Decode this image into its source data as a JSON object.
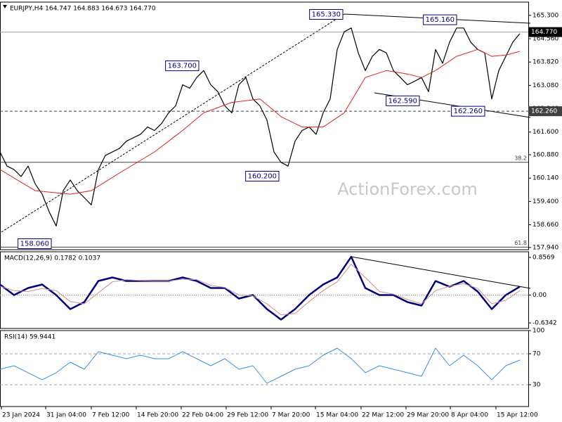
{
  "watermark": "ActionForex.com",
  "chart_data": [
    {
      "type": "line",
      "title": "EURJPY,H4  164.747 164.883 164.673 164.770",
      "xlim": [
        0,
        75.2
      ],
      "ylim": [
        157.87,
        165.72
      ],
      "yticks": [
        {
          "value": 165.3,
          "label": "165.300"
        },
        {
          "value": 164.56,
          "label": "164.560"
        },
        {
          "value": 163.82,
          "label": "163.820"
        },
        {
          "value": 163.08,
          "label": "163.080"
        },
        {
          "value": 162.34,
          "label": "162.340"
        },
        {
          "value": 161.6,
          "label": "161.600"
        },
        {
          "value": 160.88,
          "label": "160.880"
        },
        {
          "value": 160.14,
          "label": "160.140"
        },
        {
          "value": 159.4,
          "label": "159.400"
        },
        {
          "value": 158.66,
          "label": "158.660"
        },
        {
          "value": 157.94,
          "label": "157.940"
        }
      ],
      "levels": [
        {
          "value": 164.77,
          "label": "164.770",
          "style": "solid",
          "color": "#a0a0a0",
          "tag": true,
          "tag_color": "#000000"
        },
        {
          "value": 162.26,
          "label": "162.260",
          "style": "dashed",
          "color": "#404040",
          "tag": true,
          "tag_color": "#404040"
        },
        {
          "value": 160.64,
          "label": "38.2",
          "style": "solid",
          "color": "#404040",
          "tag": false
        },
        {
          "value": 157.95,
          "label": "61.8",
          "style": "solid",
          "color": "#404040",
          "tag": false
        }
      ],
      "series": [
        {
          "name": "EURJPY",
          "color": "#000000",
          "width": 1.2,
          "values": [
            160.97,
            160.52,
            160.41,
            160.19,
            160.52,
            159.96,
            159.63,
            159.07,
            158.62,
            159.74,
            160.08,
            159.74,
            159.52,
            159.29,
            160.41,
            160.86,
            160.97,
            161.08,
            161.31,
            161.42,
            161.53,
            161.76,
            161.65,
            161.87,
            162.21,
            162.43,
            163.1,
            162.99,
            163.33,
            163.55,
            163.1,
            162.88,
            162.43,
            162.21,
            163.1,
            163.33,
            162.65,
            162.43,
            161.98,
            160.97,
            160.64,
            160.52,
            161.31,
            161.65,
            161.76,
            161.53,
            162.21,
            162.65,
            164.22,
            164.78,
            164.9,
            164.11,
            163.55,
            164.0,
            164.22,
            164.11,
            163.55,
            163.33,
            163.1,
            163.21,
            163.33,
            162.88,
            164.22,
            163.78,
            164.45,
            164.9,
            164.9,
            164.45,
            164.22,
            164.11,
            162.65,
            163.55,
            164.0,
            164.45,
            164.72
          ]
        },
        {
          "name": "MA",
          "color": "#e02020",
          "width": 1,
          "x": [
            0,
            5,
            10,
            13,
            17,
            22,
            26,
            29,
            33,
            37,
            40,
            43,
            46,
            49,
            52,
            55,
            58,
            60,
            62,
            65,
            68,
            70,
            72,
            74
          ],
          "values": [
            160.41,
            159.74,
            159.63,
            159.74,
            160.3,
            160.97,
            161.65,
            162.21,
            162.54,
            162.65,
            162.09,
            161.76,
            161.76,
            162.21,
            163.33,
            163.55,
            163.44,
            163.33,
            163.55,
            164.0,
            164.22,
            164.0,
            164.04,
            164.16
          ]
        }
      ],
      "annotations": [
        {
          "x": 48.8,
          "value": 165.33,
          "label": "165.330"
        },
        {
          "x": 65,
          "value": 165.16,
          "label": "165.160"
        },
        {
          "x": 28.3,
          "value": 163.7,
          "label": "163.700"
        },
        {
          "x": 59.7,
          "value": 162.59,
          "label": "162.590"
        },
        {
          "x": 69,
          "value": 162.26,
          "label": "162.260"
        },
        {
          "x": 39.7,
          "value": 160.2,
          "label": "160.200"
        },
        {
          "x": 7.3,
          "value": 158.06,
          "label": "158.060"
        }
      ]
    },
    {
      "type": "line",
      "title": "MACD(12,26,9) 0.1782 0.1037",
      "xlim": [
        0,
        75.2
      ],
      "ylim": [
        -0.761,
        0.984
      ],
      "yticks": [
        0.8569,
        {
          "value": 0,
          "label": "0.00"
        },
        -0.6342
      ],
      "levels": [
        {
          "value": 0,
          "style": "dotted",
          "color": "#808080"
        }
      ],
      "series": [
        {
          "name": "MACD",
          "color": "#000080",
          "width": 2.5,
          "x": [
            0,
            2,
            4,
            6,
            8,
            10,
            12,
            14,
            16,
            18,
            20,
            22,
            24,
            26,
            28,
            30,
            32,
            34,
            36,
            38,
            40,
            42,
            44,
            46,
            48,
            50,
            52,
            54,
            56,
            58,
            60,
            62,
            64,
            66,
            68,
            70,
            72,
            74
          ],
          "values": [
            0.24,
            0,
            0.16,
            0.24,
            0,
            -0.32,
            -0.16,
            0.32,
            0.4,
            0.32,
            0.32,
            0.32,
            0.32,
            0.4,
            0.32,
            0.16,
            0.16,
            -0.08,
            0,
            -0.32,
            -0.56,
            -0.32,
            0,
            0.24,
            0.4,
            0.87,
            0.16,
            0,
            0,
            -0.16,
            -0.24,
            0.32,
            0.19,
            0.32,
            0.08,
            -0.32,
            0,
            0.19
          ]
        },
        {
          "name": "Signal",
          "color": "#c89090",
          "width": 1,
          "x": [
            0,
            2,
            4,
            6,
            8,
            10,
            12,
            14,
            16,
            18,
            20,
            22,
            24,
            26,
            28,
            30,
            32,
            34,
            36,
            38,
            40,
            42,
            44,
            46,
            48,
            50,
            52,
            54,
            56,
            58,
            60,
            62,
            64,
            66,
            68,
            70,
            72,
            74
          ],
          "values": [
            0.2,
            0.1,
            0.08,
            0.15,
            0.1,
            -0.15,
            -0.2,
            0.05,
            0.3,
            0.35,
            0.33,
            0.32,
            0.32,
            0.36,
            0.35,
            0.22,
            0.17,
            0.0,
            -0.02,
            -0.2,
            -0.45,
            -0.42,
            -0.15,
            0.1,
            0.3,
            0.7,
            0.4,
            0.08,
            0.02,
            -0.1,
            -0.2,
            0.1,
            0.2,
            0.26,
            0.15,
            -0.2,
            -0.12,
            0.1
          ]
        }
      ]
    },
    {
      "type": "line",
      "title": "RSI(14) 59.9441",
      "xlim": [
        0,
        75.2
      ],
      "ylim": [
        1.8,
        100
      ],
      "yticks": [
        100,
        70,
        30
      ],
      "levels": [
        {
          "value": 70,
          "style": "dashed",
          "color": "#a0a0a0"
        },
        {
          "value": 30,
          "style": "dashed",
          "color": "#a0a0a0"
        }
      ],
      "series": [
        {
          "name": "RSI",
          "color": "#3a8ee6",
          "width": 1,
          "x": [
            0,
            2,
            4,
            6,
            8,
            10,
            12,
            14,
            16,
            18,
            20,
            22,
            24,
            26,
            28,
            30,
            32,
            34,
            36,
            38,
            40,
            42,
            44,
            46,
            48,
            50,
            52,
            54,
            56,
            58,
            60,
            62,
            64,
            66,
            68,
            70,
            72,
            74
          ],
          "values": [
            50,
            54.5,
            45.5,
            36.4,
            45.5,
            59.1,
            50,
            72.7,
            68.2,
            63.6,
            68.2,
            63.6,
            63.6,
            72.7,
            63.6,
            54.5,
            63.6,
            50,
            54.5,
            31.8,
            40.9,
            50,
            54.5,
            68.2,
            77.3,
            63.6,
            45.5,
            54.5,
            50,
            45.5,
            40.9,
            77.3,
            54.5,
            68.2,
            54.5,
            36.4,
            54.5,
            61.8
          ]
        }
      ],
      "xticks": [
        {
          "value": 0.2,
          "label": "23 Jan 2024"
        },
        {
          "value": 6.5,
          "label": "31 Jan 04:00"
        },
        {
          "value": 13,
          "label": "7 Feb 12:00"
        },
        {
          "value": 19.4,
          "label": "14 Feb 20:00"
        },
        {
          "value": 25.8,
          "label": "22 Feb 04:00"
        },
        {
          "value": 32.2,
          "label": "29 Feb 12:00"
        },
        {
          "value": 38.6,
          "label": "7 Mar 20:00"
        },
        {
          "value": 44.9,
          "label": "15 Mar 04:00"
        },
        {
          "value": 51.4,
          "label": "22 Mar 12:00"
        },
        {
          "value": 57.8,
          "label": "29 Mar 20:00"
        },
        {
          "value": 64.1,
          "label": "8 Apr 04:00"
        },
        {
          "value": 70.6,
          "label": "15 Apr 12:00"
        }
      ]
    }
  ]
}
